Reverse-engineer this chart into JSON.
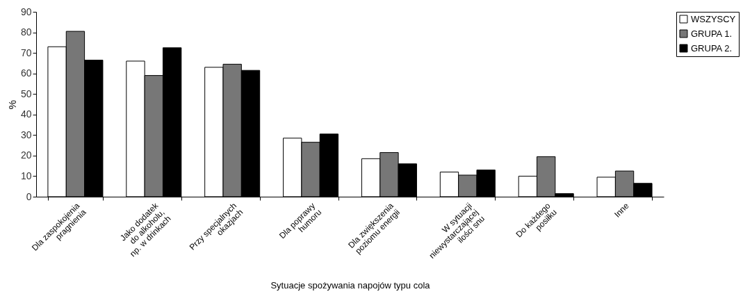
{
  "chart_data": {
    "type": "bar",
    "xlabel": "Sytuacje spożywania napojów typu cola",
    "ylabel": "%",
    "categories": [
      "Dla zaspokojenia\npragnienia",
      "Jako dodatek\ndo alkoholu,\nnp. w drinkach",
      "Przy specjalnych\nokazjach",
      "Dla poprawy\nhumoru",
      "Dla zwiększenia\npoziomu energii",
      "W sytuacji\nniewystarczającej\nilości snu",
      "Do każdego\nposiłku",
      "Inne"
    ],
    "series": [
      {
        "name": "WSZYSCY",
        "color": "#ffffff",
        "values": [
          73,
          66,
          63,
          28.5,
          18.5,
          12,
          10,
          9.5
        ]
      },
      {
        "name": "GRUPA 1.",
        "color": "#777777",
        "values": [
          80.5,
          59,
          64.5,
          26.5,
          21.5,
          10.5,
          19.5,
          12.5
        ]
      },
      {
        "name": "GRUPA 2.",
        "color": "#000000",
        "values": [
          66.5,
          72.5,
          61.5,
          30.5,
          16,
          13,
          1.5,
          6.5
        ]
      }
    ],
    "ylim": [
      0,
      90
    ],
    "yticks": [
      0,
      10,
      20,
      30,
      40,
      50,
      60,
      70,
      80,
      90
    ],
    "grid": false,
    "legend": "right"
  }
}
